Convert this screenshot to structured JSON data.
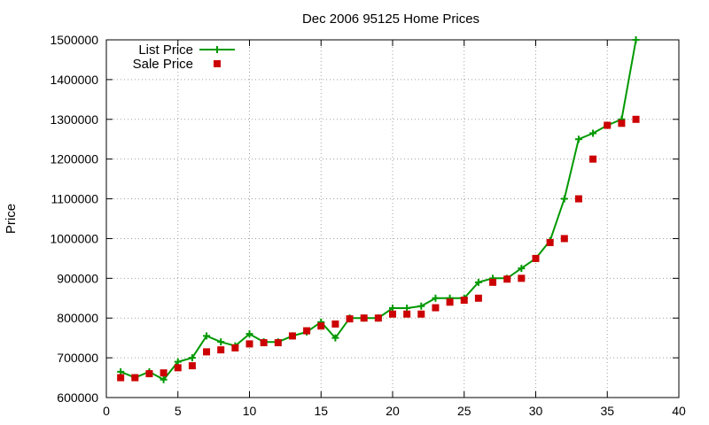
{
  "chart_data": {
    "type": "line",
    "title": "Dec 2006 95125 Home Prices",
    "xlabel": "",
    "ylabel": "Price",
    "xlim": [
      0,
      40
    ],
    "ylim": [
      600000,
      1500000
    ],
    "xticks": [
      0,
      5,
      10,
      15,
      20,
      25,
      30,
      35,
      40
    ],
    "yticks": [
      600000,
      700000,
      800000,
      900000,
      1000000,
      1100000,
      1200000,
      1300000,
      1400000,
      1500000
    ],
    "grid": true,
    "legend_position": "top-left",
    "series": [
      {
        "name": "List Price",
        "style": "lines+points",
        "marker": "plus",
        "color": "#009900",
        "x": [
          1,
          2,
          3,
          4,
          5,
          6,
          7,
          8,
          9,
          10,
          11,
          12,
          13,
          14,
          15,
          16,
          17,
          18,
          19,
          20,
          21,
          22,
          23,
          24,
          25,
          26,
          27,
          28,
          29,
          30,
          31,
          32,
          33,
          34,
          35,
          36,
          37
        ],
        "y": [
          665000,
          650000,
          665000,
          645000,
          690000,
          700000,
          755000,
          740000,
          730000,
          760000,
          740000,
          740000,
          755000,
          765000,
          790000,
          750000,
          800000,
          800000,
          800000,
          825000,
          825000,
          830000,
          850000,
          850000,
          850000,
          890000,
          900000,
          900000,
          925000,
          950000,
          995000,
          1100000,
          1250000,
          1265000,
          1285000,
          1300000,
          1500000
        ]
      },
      {
        "name": "Sale Price",
        "style": "points",
        "marker": "square",
        "color": "#cc0000",
        "x": [
          1,
          2,
          3,
          4,
          5,
          6,
          7,
          8,
          9,
          10,
          11,
          12,
          13,
          14,
          15,
          16,
          17,
          18,
          19,
          20,
          21,
          22,
          23,
          24,
          25,
          26,
          27,
          28,
          29,
          30,
          31,
          32,
          33,
          34,
          35,
          36,
          37
        ],
        "y": [
          650000,
          650000,
          660000,
          662000,
          675000,
          680000,
          715000,
          720000,
          725000,
          735000,
          738000,
          738000,
          755000,
          768000,
          780000,
          785000,
          798000,
          800000,
          800000,
          810000,
          810000,
          810000,
          826000,
          840000,
          845000,
          850000,
          890000,
          898000,
          900000,
          950000,
          990000,
          1000000,
          1100000,
          1200000,
          1285000,
          1290000,
          1300000
        ]
      }
    ]
  }
}
